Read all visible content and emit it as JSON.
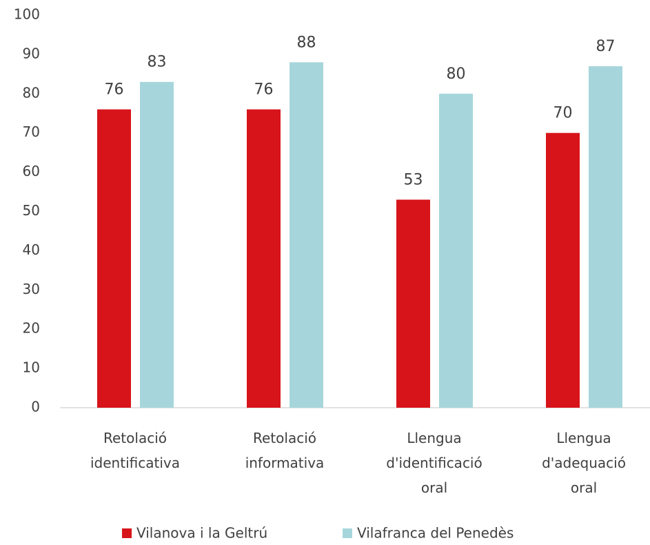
{
  "chart_data": {
    "type": "bar",
    "categories": [
      "Retolació identificativa",
      "Retolació informativa",
      "Llengua d'identificació oral",
      "Llengua d'adequació oral"
    ],
    "series": [
      {
        "name": "Vilanova i la Geltrú",
        "color": "#d7141a",
        "values": [
          76,
          76,
          53,
          70
        ]
      },
      {
        "name": "Vilafranca del Penedès",
        "color": "#a6d6db",
        "values": [
          83,
          88,
          80,
          87
        ]
      }
    ],
    "ylim": [
      0,
      100
    ],
    "yticks": [
      0,
      10,
      20,
      30,
      40,
      50,
      60,
      70,
      80,
      90,
      100
    ],
    "grid": false,
    "legend": "bottom"
  }
}
